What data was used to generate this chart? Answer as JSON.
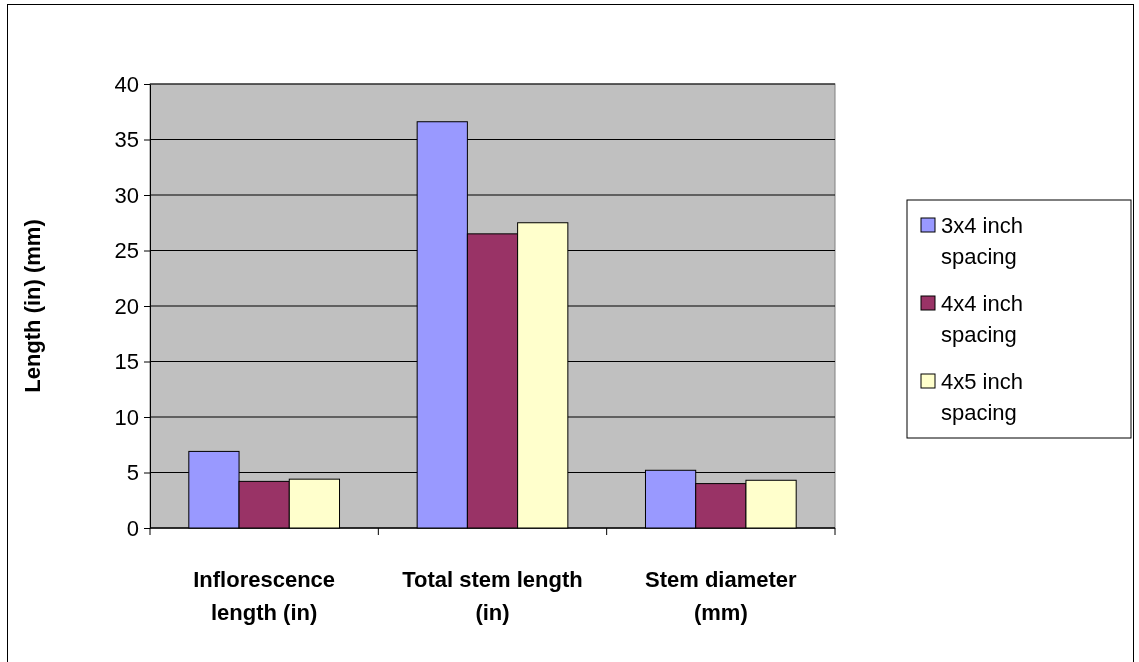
{
  "chart_data": {
    "type": "bar",
    "ylabel": "Length (in) (mm)",
    "categories": [
      "Inflorescence length (in)",
      "Total stem length (in)",
      "Stem diameter (mm)"
    ],
    "series": [
      {
        "name": "3x4 inch spacing",
        "color": "#9999ff",
        "values": [
          6.9,
          36.6,
          5.2
        ]
      },
      {
        "name": "4x4 inch spacing",
        "color": "#993366",
        "values": [
          4.2,
          26.5,
          4.0
        ]
      },
      {
        "name": "4x5 inch spacing",
        "color": "#ffffcc",
        "values": [
          4.4,
          27.5,
          4.3
        ]
      }
    ],
    "ylim": [
      0,
      40
    ],
    "yticks": [
      0,
      5,
      10,
      15,
      20,
      25,
      30,
      35,
      40
    ],
    "grid": "y",
    "legend": "right"
  }
}
